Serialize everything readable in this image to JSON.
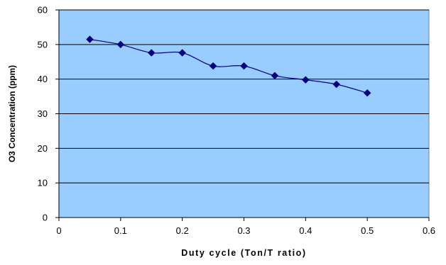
{
  "chart_data": {
    "type": "line",
    "title": "",
    "xlabel": "Duty cycle (Ton/T ratio)",
    "ylabel": "O3 Concentration (ppm)",
    "xlim": [
      0,
      0.6
    ],
    "ylim": [
      0,
      60
    ],
    "xticks": [
      0,
      0.1,
      0.2,
      0.3,
      0.4,
      0.5,
      0.6
    ],
    "xtick_labels": [
      "0",
      "0.1",
      "0.2",
      "0.3",
      "0.4",
      "0.5",
      "0.6"
    ],
    "yticks": [
      0,
      10,
      20,
      30,
      40,
      50,
      60
    ],
    "ytick_labels": [
      "0",
      "10",
      "20",
      "30",
      "40",
      "50",
      "60"
    ],
    "grid": "horizontal major gridlines",
    "legend": "none",
    "plot_background": "#99ccff",
    "line_color": "#000080",
    "marker": "diamond",
    "smoothed": true,
    "series": [
      {
        "x": [
          0.05,
          0.1,
          0.15,
          0.2,
          0.25,
          0.3,
          0.35,
          0.4,
          0.45,
          0.5
        ],
        "y": [
          51.5,
          50.0,
          47.6,
          47.6,
          43.8,
          43.8,
          41.0,
          39.8,
          38.5,
          36.0
        ]
      }
    ]
  }
}
